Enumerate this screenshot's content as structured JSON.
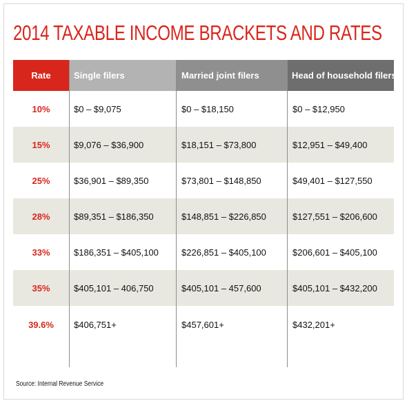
{
  "title": "2014 TAXABLE INCOME BRACKETS AND RATES",
  "source": "Source: Internal Revenue Service",
  "colors": {
    "accent_red": "#d9261c",
    "header_single": "#b3b3b3",
    "header_married": "#8f8f8f",
    "header_head": "#6e6e6e",
    "row_shade": "#e8e8e0"
  },
  "chart_data": {
    "type": "table",
    "title": "2014 TAXABLE INCOME BRACKETS AND RATES",
    "columns": [
      "Rate",
      "Single filers",
      "Married joint filers",
      "Head of household filers"
    ],
    "rows": [
      [
        "10%",
        "$0 – $9,075",
        "$0 – $18,150",
        "$0 – $12,950"
      ],
      [
        "15%",
        "$9,076 – $36,900",
        "$18,151 – $73,800",
        "$12,951 – $49,400"
      ],
      [
        "25%",
        "$36,901 – $89,350",
        "$73,801 – $148,850",
        "$49,401 – $127,550"
      ],
      [
        "28%",
        "$89,351 – $186,350",
        "$148,851 – $226,850",
        "$127,551 – $206,600"
      ],
      [
        "33%",
        "$186,351 – $405,100",
        "$226,851 – $405,100",
        "$206,601 – $405,100"
      ],
      [
        "35%",
        "$405,101 – 406,750",
        "$405,101 – 457,600",
        "$405,101 – $432,200"
      ],
      [
        "39.6%",
        "$406,751+",
        "$457,601+",
        "$432,201+"
      ]
    ],
    "shaded_rows": [
      1,
      3,
      5
    ]
  }
}
